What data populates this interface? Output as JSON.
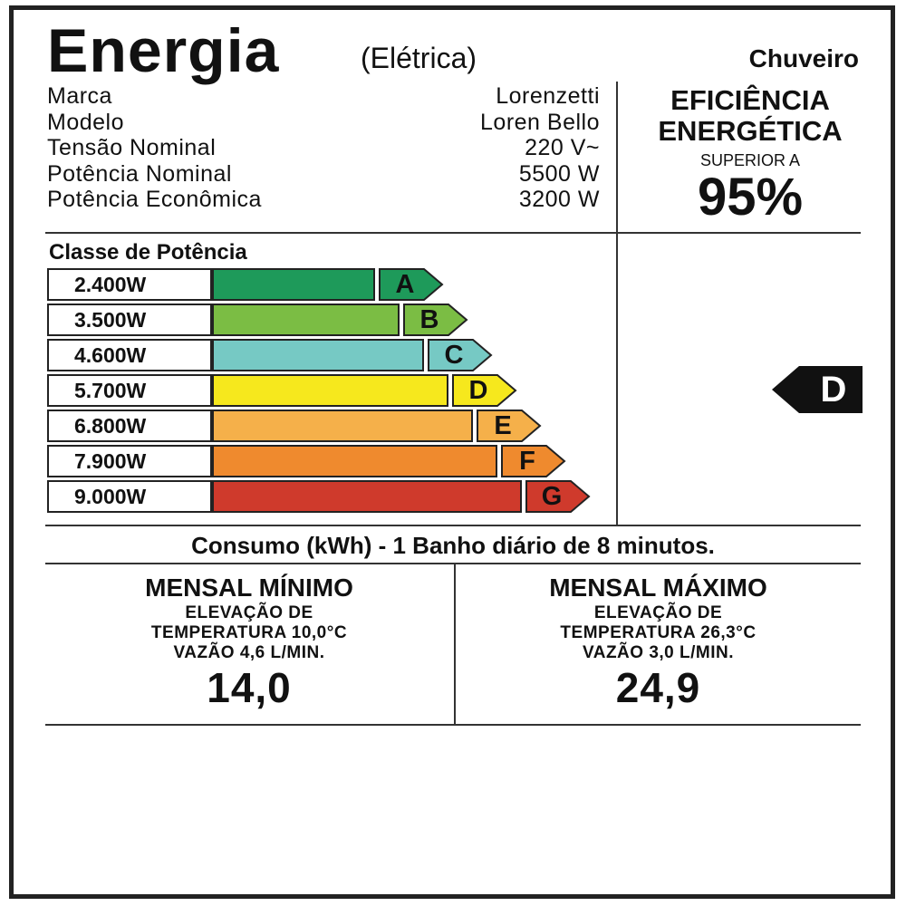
{
  "header": {
    "title": "Energia",
    "subtitle": "(Elétrica)",
    "category": "Chuveiro"
  },
  "specs": [
    {
      "label": "Marca",
      "value": "Lorenzetti"
    },
    {
      "label": "Modelo",
      "value": "Loren Bello"
    },
    {
      "label": "Tensão Nominal",
      "value": "220 V~"
    },
    {
      "label": "Potência Nominal",
      "value": "5500 W"
    },
    {
      "label": "Potência Econômica",
      "value": "3200 W"
    }
  ],
  "efficiency": {
    "title_line1": "EFICIÊNCIA",
    "title_line2": "ENERGÉTICA",
    "qualifier": "SUPERIOR A",
    "value": "95%"
  },
  "power_classes": {
    "title": "Classe de Potência",
    "classes": [
      {
        "watts": "2.400W",
        "letter": "A",
        "color": "#1e9a5a"
      },
      {
        "watts": "3.500W",
        "letter": "B",
        "color": "#7bbd44"
      },
      {
        "watts": "4.600W",
        "letter": "C",
        "color": "#76c9c4"
      },
      {
        "watts": "5.700W",
        "letter": "D",
        "color": "#f6e81d"
      },
      {
        "watts": "6.800W",
        "letter": "E",
        "color": "#f5b04a"
      },
      {
        "watts": "7.900W",
        "letter": "F",
        "color": "#ef8a2e"
      },
      {
        "watts": "9.000W",
        "letter": "G",
        "color": "#cf3a2c"
      }
    ],
    "rated_class": "D"
  },
  "consumption": {
    "header": "Consumo (kWh) - 1 Banho diário de 8 minutos.",
    "minimum": {
      "title": "MENSAL MÍNIMO",
      "line1": "ELEVAÇÃO DE",
      "line2": "TEMPERATURA 10,0°C",
      "line3": "VAZÃO 4,6 L/MIN.",
      "value": "14,0"
    },
    "maximum": {
      "title": "MENSAL MÁXIMO",
      "line1": "ELEVAÇÃO DE",
      "line2": "TEMPERATURA 26,3°C",
      "line3": "VAZÃO 3,0 L/MIN.",
      "value": "24,9"
    }
  }
}
